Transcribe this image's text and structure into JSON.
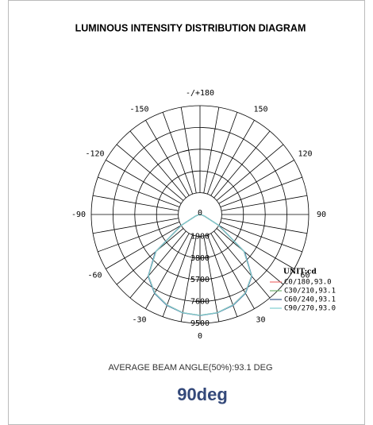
{
  "chart_data": {
    "type": "polar",
    "title": "LUMINOUS INTENSITY DISTRIBUTION DIAGRAM",
    "theta": [
      -90,
      -80,
      -70,
      -60,
      -50,
      -40,
      -30,
      -20,
      -10,
      0,
      10,
      20,
      30,
      40,
      50,
      60,
      70,
      80,
      90
    ],
    "series": [
      {
        "name": "C0/180,93.0",
        "color": "#f07070",
        "values": [
          0,
          100,
          400,
          1800,
          5000,
          7000,
          7900,
          8400,
          8700,
          8800,
          8700,
          8400,
          7900,
          7000,
          5000,
          1800,
          400,
          100,
          0
        ]
      },
      {
        "name": "C30/210,93.1",
        "color": "#70b070",
        "values": [
          0,
          100,
          420,
          1850,
          5050,
          7020,
          7920,
          8420,
          8710,
          8800,
          8710,
          8420,
          7920,
          7020,
          5050,
          1850,
          420,
          100,
          0
        ]
      },
      {
        "name": "C60/240,93.1",
        "color": "#3a5a8c",
        "values": [
          0,
          100,
          430,
          1900,
          5100,
          7050,
          7950,
          8450,
          8720,
          8820,
          8720,
          8450,
          7950,
          7050,
          5100,
          1900,
          430,
          100,
          0
        ]
      },
      {
        "name": "C90/270,93.0",
        "color": "#7fcfd0",
        "values": [
          0,
          100,
          400,
          1820,
          5020,
          7010,
          7910,
          8410,
          8700,
          8800,
          8700,
          8410,
          7910,
          7010,
          5020,
          1820,
          400,
          100,
          0
        ]
      }
    ],
    "rlim": [
      0,
      9500
    ],
    "rticks": [
      0,
      1900,
      3800,
      5700,
      7600,
      9500
    ],
    "thetaticks": [
      0,
      30,
      60,
      90,
      120,
      150,
      {
        "value": 180,
        "label": "-/+180"
      },
      -150,
      -120,
      -90,
      -60,
      -30
    ],
    "thetagrid": [
      -170,
      -160,
      -150,
      -140,
      -130,
      -120,
      -110,
      -100,
      -90,
      -80,
      -70,
      -60,
      -50,
      -40,
      -30,
      -20,
      -10,
      0,
      10,
      20,
      30,
      40,
      50,
      60,
      70,
      80,
      90,
      100,
      110,
      120,
      130,
      140,
      150,
      160,
      170,
      180
    ],
    "unit_label": "UNIT:cd",
    "beam_angle_text": "AVERAGE BEAM ANGLE(50%):93.1 DEG",
    "beam_angle_big": "90deg"
  }
}
